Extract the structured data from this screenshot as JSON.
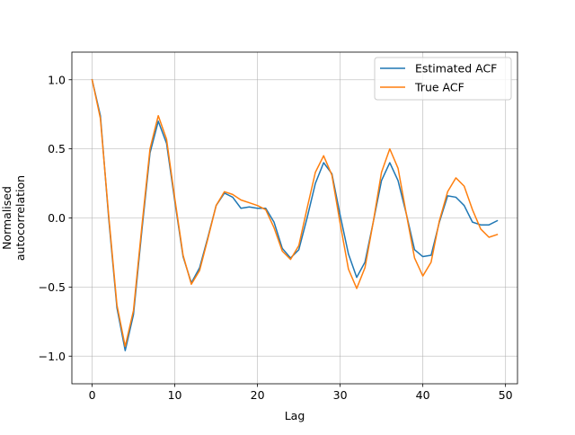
{
  "chart_data": {
    "type": "line",
    "title": "",
    "xlabel": "Lag",
    "ylabel_lines": [
      "Normalised",
      "autocorrelation"
    ],
    "xlim": [
      -2.45,
      51.45
    ],
    "ylim": [
      -1.2,
      1.2
    ],
    "xticks": [
      0,
      10,
      20,
      30,
      40,
      50
    ],
    "yticks": [
      -1.0,
      -0.5,
      0.0,
      0.5,
      1.0
    ],
    "ytick_labels": [
      "−1.0",
      "−0.5",
      "0.0",
      "0.5",
      "1.0"
    ],
    "grid": true,
    "legend_position": "top-right",
    "x": [
      0,
      1,
      2,
      3,
      4,
      5,
      6,
      7,
      8,
      9,
      10,
      11,
      12,
      13,
      14,
      15,
      16,
      17,
      18,
      19,
      20,
      21,
      22,
      23,
      24,
      25,
      26,
      27,
      28,
      29,
      30,
      31,
      32,
      33,
      34,
      35,
      36,
      37,
      38,
      39,
      40,
      41,
      42,
      43,
      44,
      45,
      46,
      47,
      48,
      49
    ],
    "series": [
      {
        "name": "Estimated ACF",
        "color": "#1f77b4",
        "values": [
          1.0,
          0.74,
          -0.0,
          -0.65,
          -0.96,
          -0.7,
          -0.1,
          0.47,
          0.7,
          0.54,
          0.12,
          -0.28,
          -0.47,
          -0.36,
          -0.14,
          0.09,
          0.18,
          0.15,
          0.07,
          0.08,
          0.07,
          0.07,
          -0.03,
          -0.22,
          -0.29,
          -0.23,
          0.0,
          0.25,
          0.4,
          0.32,
          0.02,
          -0.26,
          -0.43,
          -0.32,
          -0.03,
          0.27,
          0.4,
          0.27,
          0.03,
          -0.23,
          -0.28,
          -0.27,
          -0.03,
          0.16,
          0.15,
          0.09,
          -0.03,
          -0.05,
          -0.05,
          -0.02
        ]
      },
      {
        "name": "True ACF",
        "color": "#ff7f0e",
        "values": [
          1.0,
          0.72,
          0.02,
          -0.63,
          -0.93,
          -0.67,
          -0.07,
          0.5,
          0.74,
          0.57,
          0.14,
          -0.27,
          -0.48,
          -0.38,
          -0.15,
          0.09,
          0.19,
          0.17,
          0.13,
          0.11,
          0.09,
          0.06,
          -0.07,
          -0.24,
          -0.3,
          -0.2,
          0.07,
          0.33,
          0.45,
          0.31,
          -0.04,
          -0.37,
          -0.51,
          -0.36,
          -0.03,
          0.33,
          0.5,
          0.36,
          0.03,
          -0.29,
          -0.42,
          -0.32,
          -0.02,
          0.19,
          0.29,
          0.23,
          0.06,
          -0.08,
          -0.14,
          -0.12
        ]
      }
    ]
  }
}
